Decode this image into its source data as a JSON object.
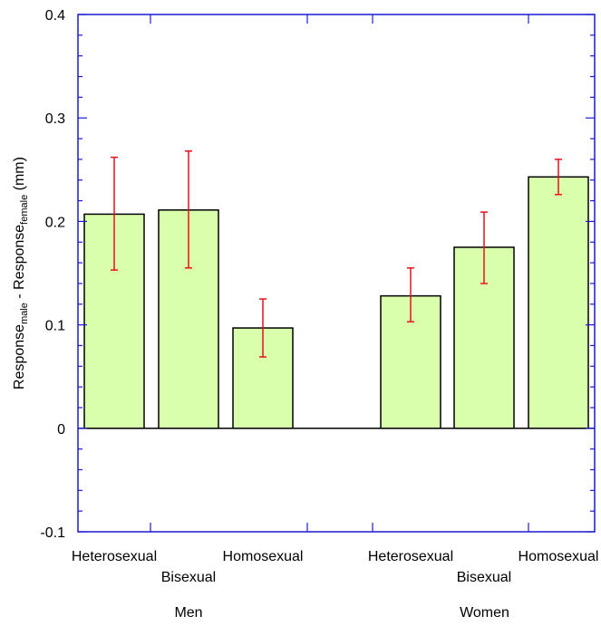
{
  "chart_data": {
    "type": "bar",
    "ylabel": {
      "main1": "Response",
      "sub1": "male",
      "sep": " - ",
      "main2": "Response",
      "sub2": "female",
      "unit": " (mm)"
    },
    "ylim": [
      -0.1,
      0.4
    ],
    "yticks": [
      -0.1,
      0,
      0.1,
      0.2,
      0.3,
      0.4
    ],
    "ytick_labels": [
      "-0.1",
      "0",
      "0.1",
      "0.2",
      "0.3",
      "0.4"
    ],
    "groups": [
      {
        "label": "Men"
      },
      {
        "label": "Women"
      }
    ],
    "bars": [
      {
        "group": "Men",
        "category": "Heterosexual",
        "value": 0.207,
        "err_low": 0.153,
        "err_high": 0.262
      },
      {
        "group": "Men",
        "category": "Bisexual",
        "value": 0.211,
        "err_low": 0.155,
        "err_high": 0.268
      },
      {
        "group": "Men",
        "category": "Homosexual",
        "value": 0.097,
        "err_low": 0.069,
        "err_high": 0.125
      },
      {
        "group": "Women",
        "category": "Heterosexual",
        "value": 0.128,
        "err_low": 0.103,
        "err_high": 0.155
      },
      {
        "group": "Women",
        "category": "Bisexual",
        "value": 0.175,
        "err_low": 0.14,
        "err_high": 0.209
      },
      {
        "group": "Women",
        "category": "Homosexual",
        "value": 0.243,
        "err_low": 0.226,
        "err_high": 0.26
      }
    ],
    "colors": {
      "bar_fill": "#d9ffad",
      "bar_stroke": "#000000",
      "error": "#e8111a",
      "axes": "#1a1ad6"
    },
    "grid": false
  }
}
